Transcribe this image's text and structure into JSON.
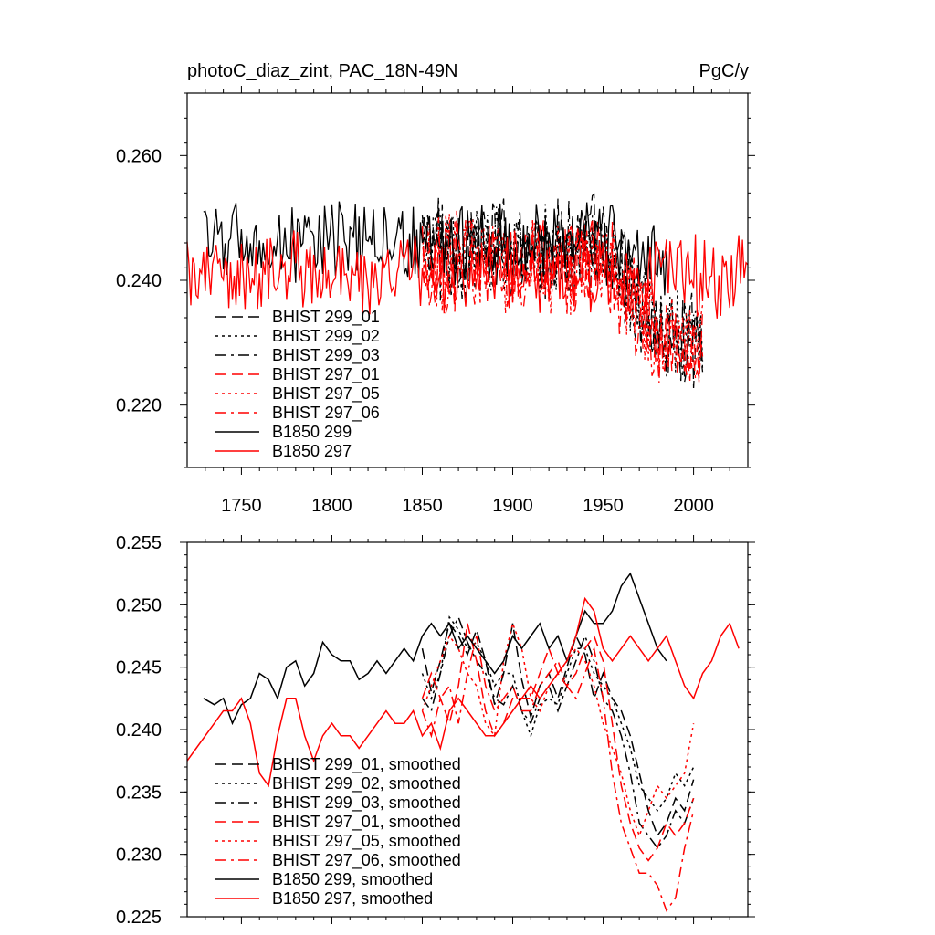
{
  "figure": {
    "title_left": "photoC_diaz_zint, PAC_18N-49N",
    "title_right": "PgC/y"
  },
  "colors": {
    "black": "#000000",
    "red": "#ff0000"
  },
  "chart_data": [
    {
      "type": "line",
      "xlim": [
        1720,
        2030
      ],
      "ylim": [
        0.21,
        0.27
      ],
      "x_ticks": [
        1750,
        1800,
        1850,
        1900,
        1950,
        2000
      ],
      "x_tick_labels": [
        "1750",
        "1800",
        "1850",
        "1900",
        "1950",
        "2000"
      ],
      "y_ticks": [
        0.22,
        0.24,
        0.26
      ],
      "y_tick_labels": [
        "0.220",
        "0.240",
        "0.260"
      ],
      "legend_position": "bottom-left",
      "series": [
        {
          "name": "BHIST 299_01",
          "color": "#000000",
          "dash": "dash",
          "x_range": [
            1850,
            2005
          ],
          "level": 0.246,
          "dip_mid": 0.23,
          "noise": 0.006
        },
        {
          "name": "BHIST 299_02",
          "color": "#000000",
          "dash": "dot",
          "x_range": [
            1850,
            2005
          ],
          "level": 0.245,
          "dip_mid": 0.232,
          "noise": 0.006
        },
        {
          "name": "BHIST 299_03",
          "color": "#000000",
          "dash": "dashdot",
          "x_range": [
            1850,
            2005
          ],
          "level": 0.245,
          "dip_mid": 0.231,
          "noise": 0.006
        },
        {
          "name": "BHIST 297_01",
          "color": "#ff0000",
          "dash": "dash",
          "x_range": [
            1850,
            2005
          ],
          "level": 0.243,
          "dip_mid": 0.229,
          "noise": 0.006
        },
        {
          "name": "BHIST 297_05",
          "color": "#ff0000",
          "dash": "dot",
          "x_range": [
            1850,
            2005
          ],
          "level": 0.243,
          "dip_mid": 0.23,
          "noise": 0.006
        },
        {
          "name": "BHIST 297_06",
          "color": "#ff0000",
          "dash": "dashdot",
          "x_range": [
            1850,
            2005
          ],
          "level": 0.243,
          "dip_mid": 0.228,
          "noise": 0.006
        },
        {
          "name": "B1850 299",
          "color": "#000000",
          "dash": "solid",
          "x_range": [
            1729,
            1985
          ],
          "level": 0.246,
          "dip_mid": 0.243,
          "noise": 0.005
        },
        {
          "name": "B1850 297",
          "color": "#ff0000",
          "dash": "solid",
          "x_range": [
            1720,
            2030
          ],
          "level": 0.241,
          "dip_mid": 0.241,
          "noise": 0.005
        }
      ]
    },
    {
      "type": "line",
      "xlim": [
        1720,
        2030
      ],
      "ylim": [
        0.225,
        0.255
      ],
      "x_ticks": [
        1750,
        1800,
        1850,
        1900,
        1950,
        2000
      ],
      "y_ticks": [
        0.225,
        0.23,
        0.235,
        0.24,
        0.245,
        0.25,
        0.255
      ],
      "y_tick_labels": [
        "0.225",
        "0.230",
        "0.235",
        "0.240",
        "0.245",
        "0.250",
        "0.255"
      ],
      "legend_position": "bottom-left",
      "series": [
        {
          "name": "BHIST 299_01, smoothed",
          "color": "#000000",
          "dash": "dash",
          "x": [
            1850,
            1855,
            1860,
            1865,
            1870,
            1875,
            1880,
            1885,
            1890,
            1895,
            1900,
            1905,
            1910,
            1915,
            1920,
            1925,
            1930,
            1935,
            1940,
            1945,
            1950,
            1955,
            1960,
            1965,
            1970,
            1975,
            1980,
            1985,
            1990,
            1995,
            2000
          ],
          "y": [
            0.2465,
            0.243,
            0.2455,
            0.2485,
            0.2475,
            0.246,
            0.248,
            0.2455,
            0.242,
            0.2445,
            0.2485,
            0.244,
            0.241,
            0.2435,
            0.2445,
            0.2425,
            0.245,
            0.2475,
            0.246,
            0.2425,
            0.2445,
            0.2425,
            0.2415,
            0.2395,
            0.2365,
            0.2335,
            0.2315,
            0.2325,
            0.2345,
            0.2335,
            0.236
          ]
        },
        {
          "name": "BHIST 299_02, smoothed",
          "color": "#000000",
          "dash": "dot",
          "x": [
            1850,
            1855,
            1860,
            1865,
            1870,
            1875,
            1880,
            1885,
            1890,
            1895,
            1900,
            1905,
            1910,
            1915,
            1920,
            1925,
            1930,
            1935,
            1940,
            1945,
            1950,
            1955,
            1960,
            1965,
            1970,
            1975,
            1980,
            1985,
            1990,
            1995,
            2000
          ],
          "y": [
            0.2445,
            0.2425,
            0.2445,
            0.249,
            0.248,
            0.2465,
            0.247,
            0.2455,
            0.2435,
            0.2445,
            0.2445,
            0.2415,
            0.2395,
            0.242,
            0.2425,
            0.242,
            0.2445,
            0.2465,
            0.2465,
            0.2445,
            0.2435,
            0.2425,
            0.2405,
            0.2385,
            0.2355,
            0.2345,
            0.2335,
            0.2345,
            0.2365,
            0.2355,
            0.237
          ]
        },
        {
          "name": "BHIST 299_03, smoothed",
          "color": "#000000",
          "dash": "dashdot",
          "x": [
            1850,
            1855,
            1860,
            1865,
            1870,
            1875,
            1880,
            1885,
            1890,
            1895,
            1900,
            1905,
            1910,
            1915,
            1920,
            1925,
            1930,
            1935,
            1940,
            1945,
            1950,
            1955,
            1960,
            1965,
            1970,
            1975,
            1980,
            1985,
            1990,
            1995,
            2000
          ],
          "y": [
            0.2425,
            0.2415,
            0.2445,
            0.2475,
            0.249,
            0.247,
            0.2455,
            0.2445,
            0.2425,
            0.242,
            0.2435,
            0.2415,
            0.2405,
            0.2425,
            0.2435,
            0.2415,
            0.2435,
            0.2455,
            0.2475,
            0.2455,
            0.2425,
            0.2415,
            0.2395,
            0.2365,
            0.2325,
            0.2315,
            0.2305,
            0.2315,
            0.2335,
            0.2325,
            0.2345
          ]
        },
        {
          "name": "BHIST 297_01, smoothed",
          "color": "#ff0000",
          "dash": "dash",
          "x": [
            1850,
            1855,
            1860,
            1865,
            1870,
            1875,
            1880,
            1885,
            1890,
            1895,
            1900,
            1905,
            1910,
            1915,
            1920,
            1925,
            1930,
            1935,
            1940,
            1945,
            1950,
            1955,
            1960,
            1965,
            1970,
            1975,
            1980,
            1985,
            1990,
            1995,
            2000
          ],
          "y": [
            0.2425,
            0.2445,
            0.2425,
            0.2405,
            0.2435,
            0.2485,
            0.2455,
            0.2415,
            0.2395,
            0.2405,
            0.2425,
            0.2425,
            0.2425,
            0.2445,
            0.2465,
            0.2445,
            0.2435,
            0.2445,
            0.2465,
            0.2475,
            0.2455,
            0.2405,
            0.2355,
            0.2325,
            0.2305,
            0.2295,
            0.2305,
            0.2325,
            0.2315,
            0.2325,
            0.2345
          ]
        },
        {
          "name": "BHIST 297_05, smoothed",
          "color": "#ff0000",
          "dash": "dot",
          "x": [
            1850,
            1855,
            1860,
            1865,
            1870,
            1875,
            1880,
            1885,
            1890,
            1895,
            1900,
            1905,
            1910,
            1915,
            1920,
            1925,
            1930,
            1935,
            1940,
            1945,
            1950,
            1955,
            1960,
            1965,
            1970,
            1975,
            1980,
            1985,
            1990,
            1995,
            2000
          ],
          "y": [
            0.2415,
            0.2435,
            0.2455,
            0.2475,
            0.2465,
            0.2445,
            0.2435,
            0.2405,
            0.2395,
            0.2455,
            0.2485,
            0.2465,
            0.2425,
            0.2415,
            0.2435,
            0.2445,
            0.2455,
            0.2465,
            0.2455,
            0.2435,
            0.2405,
            0.2385,
            0.2365,
            0.2335,
            0.2315,
            0.2335,
            0.2355,
            0.2345,
            0.2355,
            0.2365,
            0.2405
          ]
        },
        {
          "name": "BHIST 297_06, smoothed",
          "color": "#ff0000",
          "dash": "dashdot",
          "x": [
            1850,
            1855,
            1860,
            1865,
            1870,
            1875,
            1880,
            1885,
            1890,
            1895,
            1900,
            1905,
            1910,
            1915,
            1920,
            1925,
            1930,
            1935,
            1940,
            1945,
            1950,
            1955,
            1960,
            1965,
            1970,
            1975,
            1980,
            1985,
            1990,
            1995,
            2000
          ],
          "y": [
            0.2415,
            0.2395,
            0.2425,
            0.2435,
            0.2405,
            0.2445,
            0.2475,
            0.2435,
            0.2415,
            0.2425,
            0.2435,
            0.2415,
            0.2415,
            0.2435,
            0.2445,
            0.2455,
            0.2435,
            0.2425,
            0.2445,
            0.2465,
            0.2425,
            0.2365,
            0.2325,
            0.2305,
            0.2285,
            0.2285,
            0.2275,
            0.2255,
            0.2265,
            0.2305,
            0.2335
          ]
        },
        {
          "name": "B1850 299, smoothed",
          "color": "#000000",
          "dash": "solid",
          "x": [
            1729,
            1735,
            1740,
            1745,
            1750,
            1755,
            1760,
            1765,
            1770,
            1775,
            1780,
            1785,
            1790,
            1795,
            1800,
            1805,
            1810,
            1815,
            1820,
            1825,
            1830,
            1835,
            1840,
            1845,
            1850,
            1855,
            1860,
            1865,
            1870,
            1875,
            1880,
            1885,
            1890,
            1895,
            1900,
            1905,
            1910,
            1915,
            1920,
            1925,
            1930,
            1935,
            1940,
            1945,
            1950,
            1955,
            1960,
            1965,
            1970,
            1975,
            1980,
            1985
          ],
          "y": [
            0.2425,
            0.242,
            0.2425,
            0.2405,
            0.242,
            0.2425,
            0.2445,
            0.244,
            0.2425,
            0.245,
            0.2455,
            0.2435,
            0.2445,
            0.247,
            0.246,
            0.2455,
            0.2455,
            0.244,
            0.2445,
            0.2455,
            0.2445,
            0.2455,
            0.2465,
            0.2455,
            0.2475,
            0.2485,
            0.2475,
            0.2485,
            0.2465,
            0.2475,
            0.2465,
            0.2455,
            0.2445,
            0.2455,
            0.2475,
            0.2465,
            0.2475,
            0.2485,
            0.2465,
            0.2475,
            0.2455,
            0.2475,
            0.2495,
            0.2485,
            0.2485,
            0.2495,
            0.2515,
            0.2525,
            0.2505,
            0.2485,
            0.2465,
            0.2455
          ]
        },
        {
          "name": "B1850 297, smoothed",
          "color": "#ff0000",
          "dash": "solid",
          "x": [
            1720,
            1725,
            1730,
            1735,
            1740,
            1745,
            1750,
            1755,
            1760,
            1765,
            1770,
            1775,
            1780,
            1785,
            1790,
            1795,
            1800,
            1805,
            1810,
            1815,
            1820,
            1825,
            1830,
            1835,
            1840,
            1845,
            1850,
            1855,
            1860,
            1865,
            1870,
            1875,
            1880,
            1885,
            1890,
            1895,
            1900,
            1905,
            1910,
            1915,
            1920,
            1925,
            1930,
            1935,
            1940,
            1945,
            1950,
            1955,
            1960,
            1965,
            1970,
            1975,
            1980,
            1985,
            1990,
            1995,
            2000,
            2005,
            2010,
            2015,
            2020,
            2025
          ],
          "y": [
            0.2375,
            0.2385,
            0.2395,
            0.2405,
            0.2415,
            0.2415,
            0.2425,
            0.2405,
            0.2365,
            0.2355,
            0.2395,
            0.2425,
            0.2425,
            0.2395,
            0.2375,
            0.2395,
            0.2405,
            0.2395,
            0.2395,
            0.2385,
            0.2395,
            0.2405,
            0.2415,
            0.2405,
            0.2405,
            0.2415,
            0.2395,
            0.2405,
            0.2385,
            0.2415,
            0.2425,
            0.2415,
            0.2405,
            0.2395,
            0.2395,
            0.2405,
            0.2415,
            0.2425,
            0.2435,
            0.2425,
            0.2435,
            0.2445,
            0.2455,
            0.2475,
            0.2505,
            0.2495,
            0.2465,
            0.2455,
            0.2465,
            0.2475,
            0.2465,
            0.2455,
            0.2465,
            0.2475,
            0.2455,
            0.2435,
            0.2425,
            0.2445,
            0.2455,
            0.2475,
            0.2485,
            0.2465
          ]
        }
      ]
    }
  ]
}
